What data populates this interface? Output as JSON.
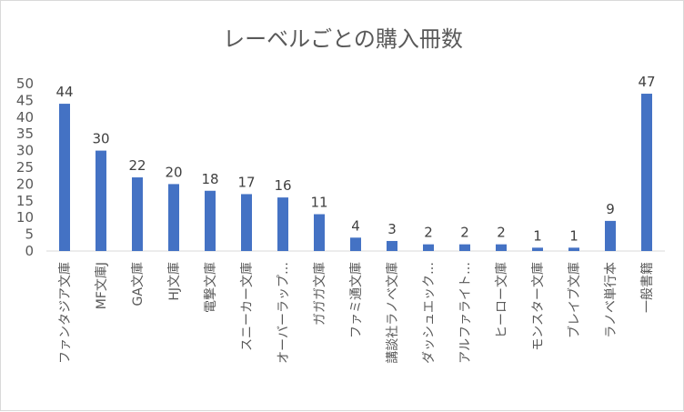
{
  "chart_data": {
    "type": "bar",
    "title": "レーベルごとの購入冊数",
    "categories": [
      "ファンタジア文庫",
      "MF文庫J",
      "GA文庫",
      "HJ文庫",
      "電撃文庫",
      "スニーカー文庫",
      "オーバーラップ…",
      "ガガガ文庫",
      "ファミ通文庫",
      "講談社ラノベ文庫",
      "ダッシュエック…",
      "アルファライト…",
      "ヒーロー文庫",
      "モンスター文庫",
      "ブレイブ文庫",
      "ラノベ単行本",
      "一般書籍"
    ],
    "values": [
      44,
      30,
      22,
      20,
      18,
      17,
      16,
      11,
      4,
      3,
      2,
      2,
      2,
      1,
      1,
      9,
      47
    ],
    "xlabel": "",
    "ylabel": "",
    "ylim": [
      0,
      50
    ],
    "yticks": [
      0,
      5,
      10,
      15,
      20,
      25,
      30,
      35,
      40,
      45,
      50
    ],
    "grid": false,
    "legend": "none",
    "data_labels": true,
    "bar_color": "#4472C4"
  }
}
